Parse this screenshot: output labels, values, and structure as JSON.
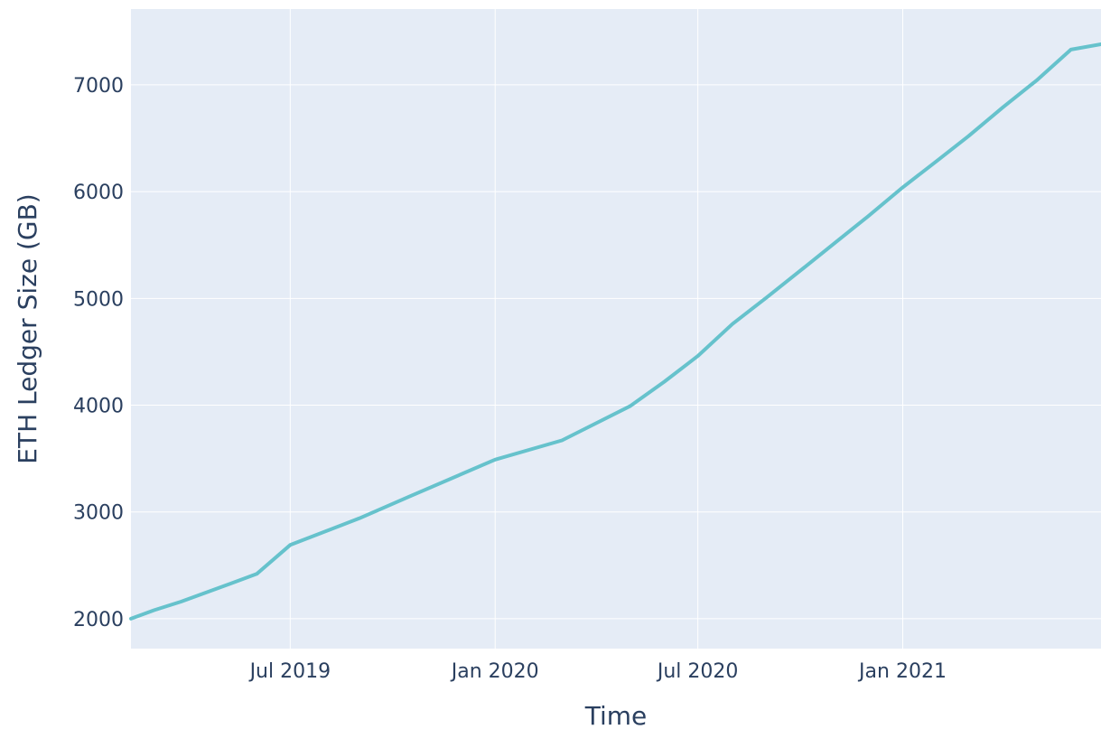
{
  "chart_data": {
    "type": "line",
    "xlabel": "Time",
    "ylabel": "ETH Ledger Size (GB)",
    "x_axis_type": "date",
    "xlim": [
      "2019-02-08",
      "2021-06-28"
    ],
    "ylim": [
      1720,
      7710
    ],
    "grid": true,
    "x_ticks": [
      {
        "date": "2019-07-01",
        "label": "Jul 2019"
      },
      {
        "date": "2020-01-01",
        "label": "Jan 2020"
      },
      {
        "date": "2020-07-01",
        "label": "Jul 2020"
      },
      {
        "date": "2021-01-01",
        "label": "Jan 2021"
      }
    ],
    "y_ticks": [
      {
        "value": 2000,
        "label": "2000"
      },
      {
        "value": 3000,
        "label": "3000"
      },
      {
        "value": 4000,
        "label": "4000"
      },
      {
        "value": 5000,
        "label": "5000"
      },
      {
        "value": 6000,
        "label": "6000"
      },
      {
        "value": 7000,
        "label": "7000"
      }
    ],
    "series": [
      {
        "color": "#66c2cc",
        "points": [
          {
            "x": "2019-02-08",
            "y": 2000
          },
          {
            "x": "2019-03-01",
            "y": 2080
          },
          {
            "x": "2019-03-25",
            "y": 2160
          },
          {
            "x": "2019-05-01",
            "y": 2300
          },
          {
            "x": "2019-06-01",
            "y": 2420
          },
          {
            "x": "2019-07-01",
            "y": 2690
          },
          {
            "x": "2019-09-01",
            "y": 2940
          },
          {
            "x": "2019-10-15",
            "y": 3140
          },
          {
            "x": "2020-01-01",
            "y": 3490
          },
          {
            "x": "2020-03-01",
            "y": 3670
          },
          {
            "x": "2020-05-01",
            "y": 3990
          },
          {
            "x": "2020-06-01",
            "y": 4220
          },
          {
            "x": "2020-07-01",
            "y": 4460
          },
          {
            "x": "2020-08-01",
            "y": 4760
          },
          {
            "x": "2020-09-01",
            "y": 5010
          },
          {
            "x": "2020-10-01",
            "y": 5260
          },
          {
            "x": "2020-11-01",
            "y": 5520
          },
          {
            "x": "2020-12-01",
            "y": 5770
          },
          {
            "x": "2021-01-01",
            "y": 6040
          },
          {
            "x": "2021-02-01",
            "y": 6290
          },
          {
            "x": "2021-03-01",
            "y": 6520
          },
          {
            "x": "2021-04-01",
            "y": 6790
          },
          {
            "x": "2021-05-01",
            "y": 7040
          },
          {
            "x": "2021-06-01",
            "y": 7330
          },
          {
            "x": "2021-06-28",
            "y": 7380
          }
        ]
      }
    ]
  }
}
